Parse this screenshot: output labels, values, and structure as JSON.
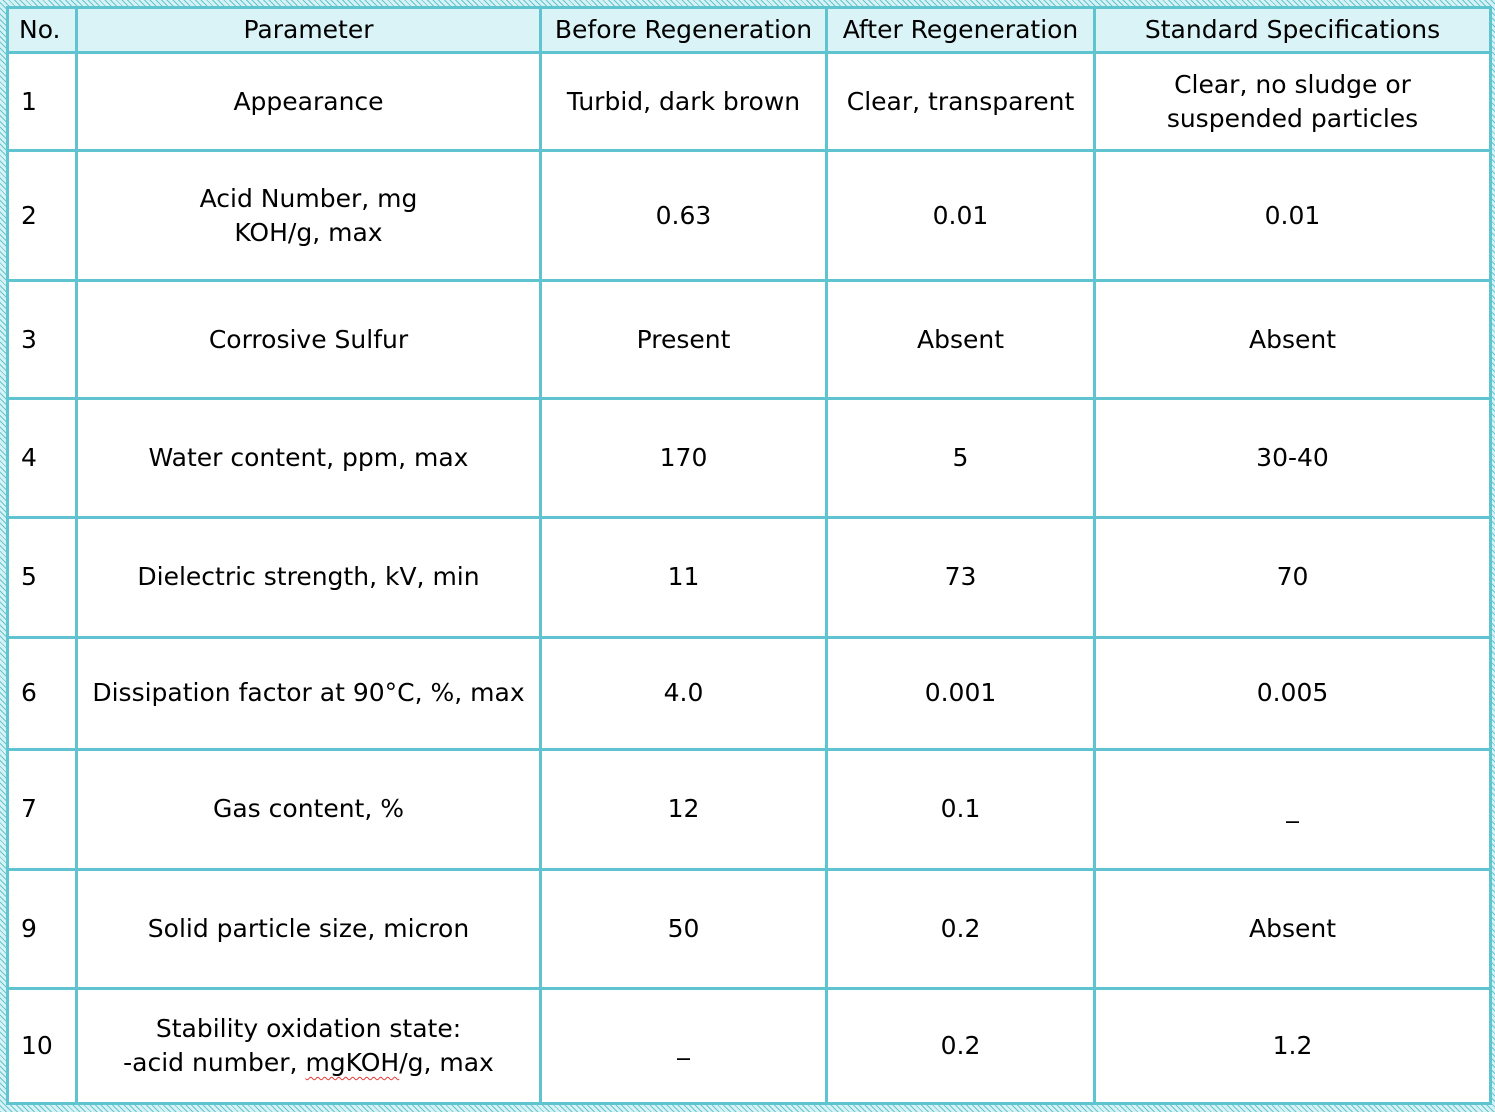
{
  "table": {
    "headers": [
      "No.",
      "Parameter",
      "Before Regeneration",
      "After Regeneration",
      "Standard Specifications"
    ],
    "rows": [
      {
        "no": "1",
        "parameter": [
          "Appearance"
        ],
        "before": "Turbid, dark brown",
        "after": "Clear, transparent",
        "standard": [
          "Clear, no sludge or",
          "suspended particles"
        ]
      },
      {
        "no": "2",
        "parameter": [
          "Acid Number, mg",
          "KOH/g, max"
        ],
        "before": "0.63",
        "after": "0.01",
        "standard": [
          "0.01"
        ]
      },
      {
        "no": "3",
        "parameter": [
          "Corrosive Sulfur"
        ],
        "before": "Present",
        "after": "Absent",
        "standard": [
          "Absent"
        ]
      },
      {
        "no": "4",
        "parameter": [
          "Water content, ppm, max"
        ],
        "before": "170",
        "after": "5",
        "standard": [
          "30-40"
        ]
      },
      {
        "no": "5",
        "parameter": [
          "Dielectric strength, kV, min"
        ],
        "before": "11",
        "after": "73",
        "standard": [
          "70"
        ]
      },
      {
        "no": "6",
        "parameter": [
          "Dissipation factor at 90°C, %, max"
        ],
        "before": "4.0",
        "after": "0.001",
        "standard": [
          "0.005"
        ]
      },
      {
        "no": "7",
        "parameter": [
          "Gas content, %"
        ],
        "before": "12",
        "after": "0.1",
        "standard": [
          "_"
        ]
      },
      {
        "no": "9",
        "parameter": [
          "Solid particle size, micron"
        ],
        "before": "50",
        "after": "0.2",
        "standard": [
          "Absent"
        ]
      },
      {
        "no": "10",
        "parameter": [
          "Stability oxidation state:",
          "-acid number, mgKOH/g, max"
        ],
        "before": "_",
        "after": "0.2",
        "standard": [
          "1.2"
        ]
      }
    ]
  },
  "colors": {
    "border": "#5fc4cf",
    "header_bg": "#d9f3f6",
    "spellcheck_underline": "#e53935"
  }
}
